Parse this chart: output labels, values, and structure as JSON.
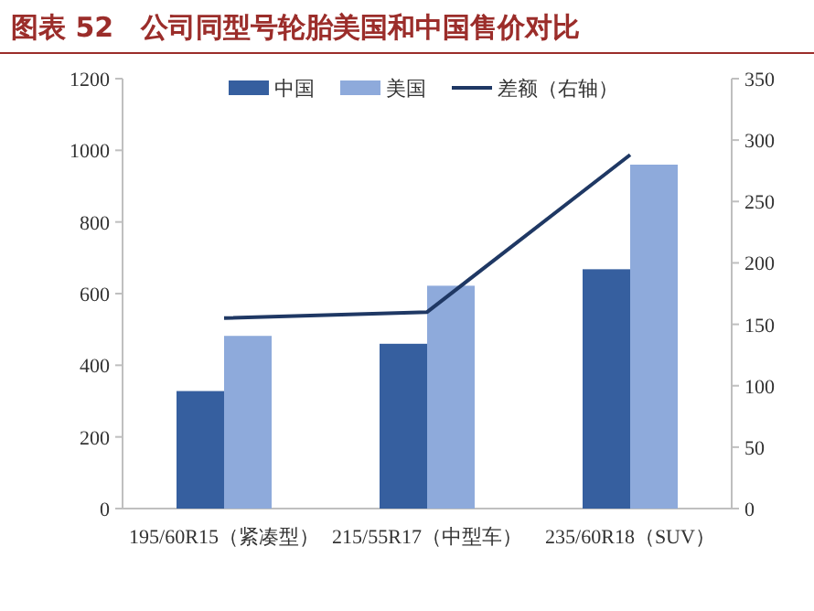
{
  "chart_data": {
    "type": "bar",
    "title": "图表 52　公司同型号轮胎美国和中国售价对比",
    "categories": [
      "195/60R15（紧凑型）",
      "215/55R17（中型车）",
      "235/60R18（SUV）"
    ],
    "series": [
      {
        "name": "中国",
        "color": "#365f9f",
        "values": [
          328,
          460,
          668
        ]
      },
      {
        "name": "美国",
        "color": "#8eaadb",
        "values": [
          482,
          622,
          960
        ]
      },
      {
        "name": "差额（右轴）",
        "type": "line",
        "axis": "y2",
        "color": "#1f3864",
        "values": [
          155,
          160,
          288
        ]
      }
    ],
    "ylim": [
      0,
      1200
    ],
    "yticks": [
      0,
      200,
      400,
      600,
      800,
      1000,
      1200
    ],
    "y2lim": [
      0,
      350
    ],
    "y2ticks": [
      0,
      50,
      100,
      150,
      200,
      250,
      300,
      350
    ],
    "grid": false,
    "legend": "top"
  }
}
